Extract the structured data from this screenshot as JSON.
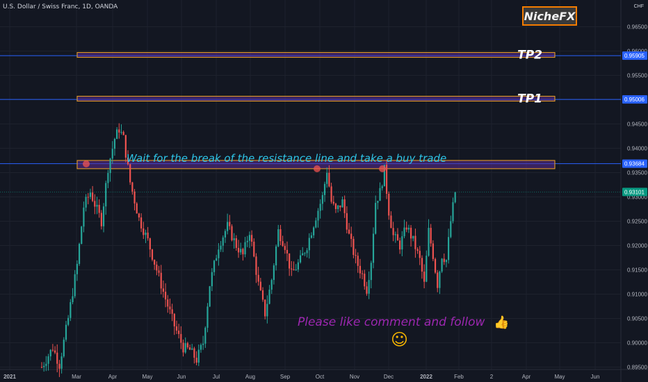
{
  "symbol_title": "U.S. Dollar / Swiss Franc, 1D, OANDA",
  "brand": "NicheFX",
  "currency": "CHF",
  "annotation_main": "Wait for the break of the resistance line and take a buy trade",
  "annotation_cta": "Please like comment and follow",
  "annotation_emoji": "👍",
  "annotation_smiley": "☺",
  "colors": {
    "background": "#131722",
    "up_candle": "#26a69a",
    "down_candle": "#ef5350",
    "zone_fill": "#5b2c91",
    "zone_border": "#f5a623",
    "hline": "#2962ff",
    "annotation_main": "#2ec4e6",
    "annotation_cta": "#9c27b0",
    "emoji": "#f5b400"
  },
  "chart_data": {
    "type": "candlestick",
    "x_ticks": [
      "2021",
      "Mar",
      "Apr",
      "May",
      "Jun",
      "Jul",
      "Aug",
      "Sep",
      "Oct",
      "Nov",
      "Dec",
      "2022",
      "Feb",
      "2",
      "Apr",
      "May",
      "Jun"
    ],
    "y_ticks": [
      "0.96500",
      "0.96000",
      "0.95500",
      "0.95000",
      "0.94500",
      "0.94000",
      "0.93500",
      "0.93000",
      "0.92500",
      "0.92000",
      "0.91500",
      "0.91000",
      "0.90500",
      "0.90000",
      "0.89500"
    ],
    "ylim": [
      0.8945,
      0.9705
    ],
    "price_labels": [
      {
        "text": "0.95905",
        "value": 0.95905,
        "color": "#2962ff"
      },
      {
        "text": "0.95006",
        "value": 0.95006,
        "color": "#2962ff"
      },
      {
        "text": "0.93684",
        "value": 0.93684,
        "color": "#2962ff"
      },
      {
        "text": "0.93101",
        "value": 0.93101,
        "color": "#089981"
      }
    ],
    "zones": [
      {
        "label": "TP2",
        "low": 0.9587,
        "high": 0.9597
      },
      {
        "label": "TP1",
        "low": 0.9497,
        "high": 0.9507
      },
      {
        "label": "",
        "low": 0.9358,
        "high": 0.9375
      }
    ],
    "resistance_touches": [
      {
        "date": "Mar 9",
        "price": 0.9376
      },
      {
        "date": "Oct 1",
        "price": 0.9368
      },
      {
        "date": "Nov 26",
        "price": 0.9368
      }
    ],
    "path": [
      {
        "t": 0,
        "p": 0.895
      },
      {
        "t": 5,
        "p": 0.899
      },
      {
        "t": 8,
        "p": 0.8955
      },
      {
        "t": 12,
        "p": 0.905
      },
      {
        "t": 16,
        "p": 0.916
      },
      {
        "t": 19,
        "p": 0.928
      },
      {
        "t": 22,
        "p": 0.931
      },
      {
        "t": 24,
        "p": 0.9285
      },
      {
        "t": 27,
        "p": 0.925
      },
      {
        "t": 30,
        "p": 0.936
      },
      {
        "t": 33,
        "p": 0.942
      },
      {
        "t": 35,
        "p": 0.944
      },
      {
        "t": 37,
        "p": 0.942
      },
      {
        "t": 40,
        "p": 0.933
      },
      {
        "t": 44,
        "p": 0.9255
      },
      {
        "t": 48,
        "p": 0.921
      },
      {
        "t": 52,
        "p": 0.915
      },
      {
        "t": 56,
        "p": 0.909
      },
      {
        "t": 60,
        "p": 0.9035
      },
      {
        "t": 64,
        "p": 0.899
      },
      {
        "t": 67,
        "p": 0.8985
      },
      {
        "t": 70,
        "p": 0.8965
      },
      {
        "t": 73,
        "p": 0.9
      },
      {
        "t": 76,
        "p": 0.912
      },
      {
        "t": 80,
        "p": 0.92
      },
      {
        "t": 84,
        "p": 0.924
      },
      {
        "t": 88,
        "p": 0.92
      },
      {
        "t": 91,
        "p": 0.918
      },
      {
        "t": 94,
        "p": 0.923
      },
      {
        "t": 98,
        "p": 0.912
      },
      {
        "t": 101,
        "p": 0.906
      },
      {
        "t": 104,
        "p": 0.913
      },
      {
        "t": 107,
        "p": 0.923
      },
      {
        "t": 110,
        "p": 0.92
      },
      {
        "t": 113,
        "p": 0.914
      },
      {
        "t": 117,
        "p": 0.917
      },
      {
        "t": 120,
        "p": 0.92
      },
      {
        "t": 124,
        "p": 0.926
      },
      {
        "t": 127,
        "p": 0.93
      },
      {
        "t": 129,
        "p": 0.9355
      },
      {
        "t": 131,
        "p": 0.929
      },
      {
        "t": 133,
        "p": 0.927
      },
      {
        "t": 136,
        "p": 0.929
      },
      {
        "t": 139,
        "p": 0.922
      },
      {
        "t": 142,
        "p": 0.917
      },
      {
        "t": 145,
        "p": 0.914
      },
      {
        "t": 147,
        "p": 0.911
      },
      {
        "t": 149,
        "p": 0.917
      },
      {
        "t": 151,
        "p": 0.929
      },
      {
        "t": 153,
        "p": 0.931
      },
      {
        "t": 155,
        "p": 0.9355
      },
      {
        "t": 157,
        "p": 0.927
      },
      {
        "t": 159,
        "p": 0.922
      },
      {
        "t": 162,
        "p": 0.92
      },
      {
        "t": 165,
        "p": 0.924
      },
      {
        "t": 168,
        "p": 0.921
      },
      {
        "t": 171,
        "p": 0.917
      },
      {
        "t": 173,
        "p": 0.912
      },
      {
        "t": 175,
        "p": 0.923
      },
      {
        "t": 177,
        "p": 0.918
      },
      {
        "t": 179,
        "p": 0.912
      },
      {
        "t": 181,
        "p": 0.918
      },
      {
        "t": 183,
        "p": 0.917
      },
      {
        "t": 185,
        "p": 0.925
      },
      {
        "t": 187,
        "p": 0.931
      }
    ]
  }
}
